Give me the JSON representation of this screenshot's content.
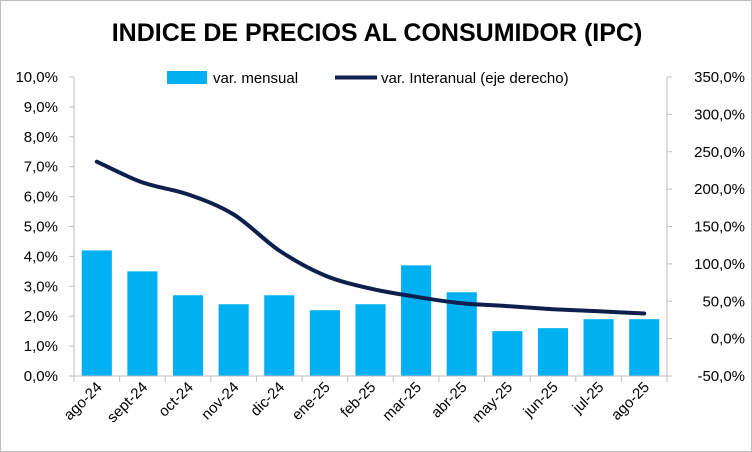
{
  "chart_data": {
    "type": "bar",
    "title": "INDICE DE PRECIOS AL CONSUMIDOR (IPC)",
    "categories": [
      "ago-24",
      "sept-24",
      "oct-24",
      "nov-24",
      "dic-24",
      "ene-25",
      "feb-25",
      "mar-25",
      "abr-25",
      "may-25",
      "jun-25",
      "jul-25",
      "ago-25"
    ],
    "series": [
      {
        "name": "var. mensual",
        "type": "bar",
        "axis": "left",
        "color": "#00b0f0",
        "values": [
          4.2,
          3.5,
          2.7,
          2.4,
          2.7,
          2.2,
          2.4,
          3.7,
          2.8,
          1.5,
          1.6,
          1.9,
          1.9
        ]
      },
      {
        "name": "var. Interanual (eje derecho)",
        "type": "line",
        "axis": "right",
        "color": "#0c1f4d",
        "values": [
          236.7,
          209.0,
          193.0,
          166.0,
          117.8,
          84.5,
          66.9,
          55.9,
          47.3,
          43.5,
          39.4,
          36.6,
          33.6
        ]
      }
    ],
    "y_left": {
      "lim": [
        0,
        10
      ],
      "ticks": [
        "0,0%",
        "1,0%",
        "2,0%",
        "3,0%",
        "4,0%",
        "5,0%",
        "6,0%",
        "7,0%",
        "8,0%",
        "9,0%",
        "10,0%"
      ]
    },
    "y_right": {
      "lim": [
        -50,
        350
      ],
      "ticks": [
        "-50,0%",
        "0,0%",
        "50,0%",
        "100,0%",
        "150,0%",
        "200,0%",
        "250,0%",
        "300,0%",
        "350,0%"
      ]
    },
    "grid": false,
    "legend_position": "top"
  }
}
